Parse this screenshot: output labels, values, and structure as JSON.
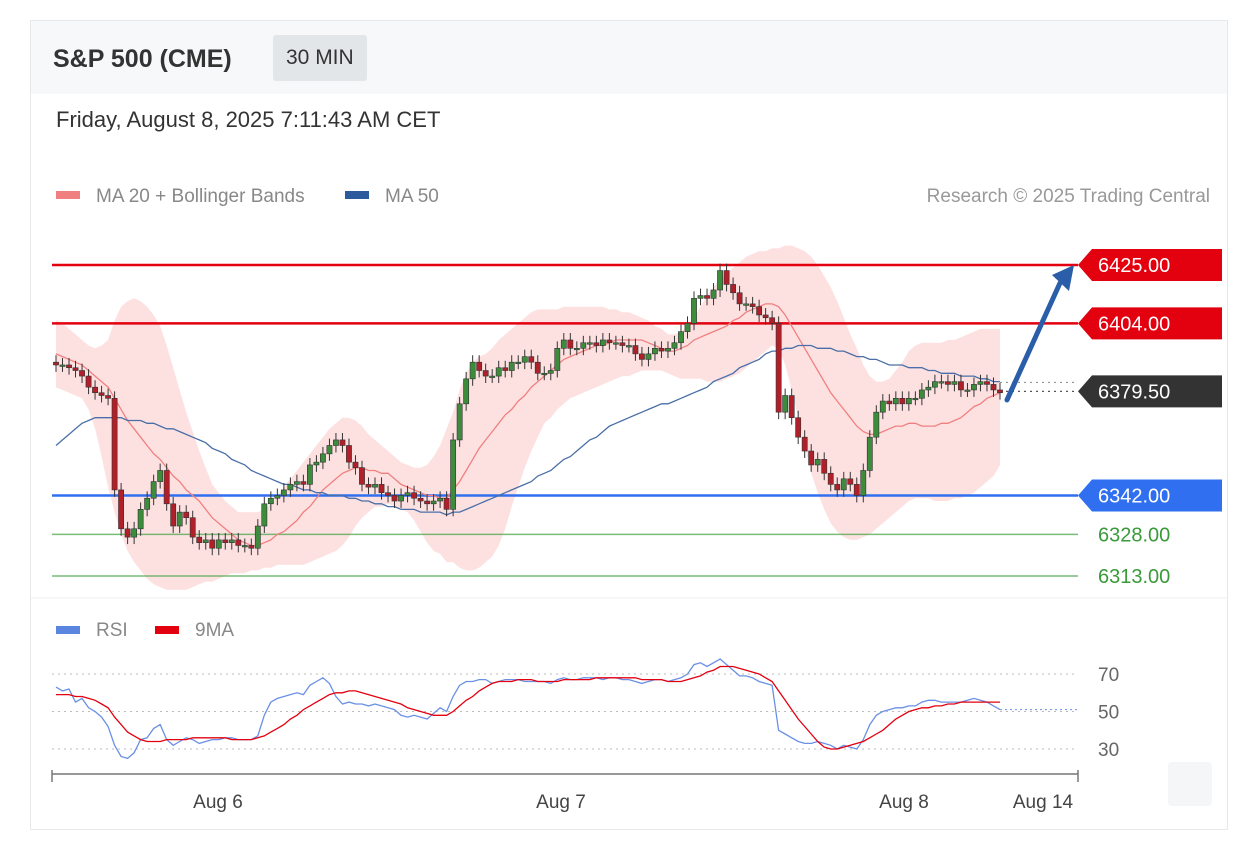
{
  "header": {
    "title": "S&P 500 (CME)",
    "interval": "30 MIN"
  },
  "timestamp": "Friday, August 8, 2025 7:11:43 AM CET",
  "copyright": "Research © 2025 Trading Central",
  "chart_data": [
    {
      "type": "candlestick",
      "title": "",
      "legend": [
        {
          "name": "MA 20 + Bollinger Bands",
          "color": "#f08080"
        },
        {
          "name": "MA 50",
          "color": "#2c5a9c"
        }
      ],
      "legend_position": "top-left",
      "x_labels": [
        "Aug 6",
        "Aug 7",
        "Aug 8",
        "Aug 14"
      ],
      "ylim": [
        6307,
        6435
      ],
      "levels": [
        {
          "value": 6425.0,
          "label": "6425.00",
          "color": "#e3000f",
          "style": "badge"
        },
        {
          "value": 6404.0,
          "label": "6404.00",
          "color": "#e3000f",
          "style": "badge"
        },
        {
          "value": 6379.5,
          "label": "6379.50",
          "color": "#333333",
          "style": "badge-dotted"
        },
        {
          "value": 6342.0,
          "label": "6342.00",
          "color": "#2f6ff0",
          "style": "badge"
        },
        {
          "value": 6328.0,
          "label": "6328.00",
          "color": "#4ca64c",
          "style": "text"
        },
        {
          "value": 6313.0,
          "label": "6313.00",
          "color": "#4ca64c",
          "style": "text"
        }
      ],
      "annotation": {
        "type": "arrow",
        "direction": "up",
        "from": 6380,
        "to": 6425,
        "color": "#2a5ea8"
      },
      "close": [
        6389,
        6389,
        6388,
        6387,
        6385,
        6381,
        6379,
        6378,
        6377,
        6344,
        6330,
        6327,
        6330,
        6337,
        6341,
        6347,
        6351,
        6339,
        6331,
        6336,
        6334,
        6327,
        6325,
        6326,
        6323,
        6326,
        6325,
        6326,
        6324,
        6324,
        6323,
        6331,
        6339,
        6341,
        6342,
        6344,
        6346,
        6347,
        6346,
        6353,
        6354,
        6357,
        6360,
        6362,
        6360,
        6354,
        6352,
        6346,
        6345,
        6346,
        6343,
        6342,
        6340,
        6342,
        6343,
        6341,
        6340,
        6339,
        6340,
        6341,
        6337,
        6362,
        6375,
        6384,
        6390,
        6387,
        6385,
        6385,
        6388,
        6387,
        6390,
        6390,
        6392,
        6390,
        6386,
        6386,
        6387,
        6395,
        6398,
        6395,
        6395,
        6397,
        6397,
        6396,
        6398,
        6397,
        6397,
        6396,
        6396,
        6393,
        6391,
        6393,
        6395,
        6394,
        6395,
        6397,
        6401,
        6404,
        6413,
        6414,
        6413,
        6416,
        6423,
        6418,
        6415,
        6411,
        6411,
        6410,
        6407,
        6406,
        6404,
        6372,
        6378,
        6370,
        6363,
        6358,
        6353,
        6355,
        6350,
        6346,
        6344,
        6348,
        6346,
        6342,
        6351,
        6363,
        6372,
        6376,
        6375,
        6377,
        6375,
        6377,
        6377,
        6380,
        6381,
        6383,
        6383,
        6382,
        6383,
        6380,
        6380,
        6382,
        6383,
        6382,
        6380,
        6379
      ],
      "ma20": [
        6393,
        6392,
        6391,
        6390,
        6389,
        6387,
        6385,
        6383,
        6381,
        6377,
        6373,
        6369,
        6366,
        6363,
        6360,
        6357,
        6355,
        6352,
        6349,
        6347,
        6344,
        6342,
        6340,
        6337,
        6334,
        6332,
        6330,
        6328,
        6326,
        6325,
        6324,
        6324,
        6325,
        6326,
        6328,
        6329,
        6331,
        6333,
        6336,
        6338,
        6341,
        6344,
        6346,
        6348,
        6350,
        6351,
        6352,
        6352,
        6351,
        6351,
        6350,
        6350,
        6348,
        6346,
        6345,
        6344,
        6343,
        6342,
        6342,
        6341,
        6341,
        6344,
        6347,
        6351,
        6355,
        6359,
        6362,
        6365,
        6368,
        6371,
        6373,
        6376,
        6378,
        6381,
        6383,
        6385,
        6387,
        6389,
        6391,
        6392,
        6393,
        6394,
        6395,
        6396,
        6396,
        6397,
        6398,
        6398,
        6398,
        6398,
        6398,
        6397,
        6396,
        6395,
        6394,
        6394,
        6395,
        6396,
        6398,
        6399,
        6400,
        6401,
        6402,
        6403,
        6405,
        6406,
        6408,
        6409,
        6410,
        6411,
        6411,
        6410,
        6407,
        6403,
        6399,
        6395,
        6391,
        6387,
        6383,
        6379,
        6376,
        6373,
        6370,
        6367,
        6365,
        6364,
        6364,
        6365,
        6366,
        6367,
        6367,
        6368,
        6368,
        6367,
        6367,
        6367,
        6368,
        6368,
        6369,
        6370,
        6372,
        6374,
        6375,
        6377,
        6378,
        6379
      ],
      "bb_upper": [
        6405,
        6404,
        6402,
        6400,
        6398,
        6396,
        6395,
        6396,
        6398,
        6405,
        6410,
        6412,
        6413,
        6412,
        6410,
        6407,
        6403,
        6396,
        6388,
        6380,
        6372,
        6365,
        6358,
        6352,
        6346,
        6343,
        6340,
        6338,
        6336,
        6336,
        6336,
        6336,
        6337,
        6339,
        6342,
        6345,
        6348,
        6351,
        6354,
        6357,
        6360,
        6363,
        6366,
        6368,
        6370,
        6370,
        6369,
        6367,
        6364,
        6362,
        6360,
        6358,
        6356,
        6354,
        6353,
        6352,
        6352,
        6353,
        6356,
        6360,
        6366,
        6372,
        6380,
        6386,
        6390,
        6392,
        6393,
        6395,
        6398,
        6400,
        6402,
        6404,
        6406,
        6408,
        6409,
        6409,
        6409,
        6409,
        6410,
        6410,
        6410,
        6410,
        6410,
        6410,
        6410,
        6409,
        6409,
        6408,
        6408,
        6407,
        6406,
        6405,
        6403,
        6402,
        6400,
        6400,
        6401,
        6403,
        6406,
        6410,
        6414,
        6417,
        6420,
        6422,
        6424,
        6426,
        6428,
        6429,
        6430,
        6430,
        6431,
        6431,
        6432,
        6432,
        6431,
        6430,
        6428,
        6425,
        6421,
        6417,
        6412,
        6406,
        6400,
        6395,
        6389,
        6385,
        6383,
        6383,
        6384,
        6387,
        6390,
        6394,
        6396,
        6397,
        6397,
        6397,
        6397,
        6398,
        6398,
        6399,
        6400,
        6401,
        6402,
        6402,
        6402,
        6402
      ],
      "bb_lower": [
        6381,
        6380,
        6379,
        6378,
        6377,
        6373,
        6366,
        6356,
        6345,
        6336,
        6328,
        6322,
        6318,
        6315,
        6312,
        6310,
        6309,
        6308,
        6308,
        6308,
        6308,
        6309,
        6310,
        6311,
        6311,
        6312,
        6313,
        6314,
        6314,
        6314,
        6315,
        6315,
        6316,
        6316,
        6317,
        6317,
        6317,
        6317,
        6317,
        6318,
        6319,
        6320,
        6321,
        6322,
        6324,
        6327,
        6331,
        6334,
        6336,
        6338,
        6338,
        6339,
        6338,
        6337,
        6336,
        6333,
        6329,
        6325,
        6322,
        6321,
        6318,
        6318,
        6316,
        6315,
        6315,
        6316,
        6318,
        6320,
        6324,
        6330,
        6338,
        6345,
        6352,
        6358,
        6363,
        6368,
        6370,
        6373,
        6375,
        6377,
        6378,
        6379,
        6380,
        6381,
        6382,
        6383,
        6384,
        6385,
        6385,
        6386,
        6387,
        6387,
        6387,
        6387,
        6386,
        6385,
        6384,
        6384,
        6384,
        6384,
        6383,
        6383,
        6383,
        6384,
        6385,
        6386,
        6388,
        6390,
        6392,
        6394,
        6396,
        6395,
        6389,
        6380,
        6370,
        6360,
        6350,
        6343,
        6337,
        6332,
        6329,
        6327,
        6326,
        6326,
        6327,
        6328,
        6330,
        6332,
        6334,
        6336,
        6338,
        6340,
        6341,
        6341,
        6341,
        6340,
        6340,
        6340,
        6341,
        6341,
        6342,
        6343,
        6345,
        6347,
        6349,
        6353
      ],
      "ma50": [
        6360,
        6362,
        6364,
        6366,
        6368,
        6369,
        6370,
        6370,
        6370,
        6370,
        6370,
        6369,
        6369,
        6369,
        6368,
        6368,
        6367,
        6366,
        6366,
        6365,
        6364,
        6363,
        6362,
        6361,
        6359,
        6358,
        6357,
        6355,
        6354,
        6353,
        6351,
        6350,
        6349,
        6348,
        6347,
        6346,
        6346,
        6345,
        6344,
        6344,
        6343,
        6343,
        6342,
        6342,
        6342,
        6341,
        6341,
        6340,
        6340,
        6339,
        6339,
        6338,
        6338,
        6337,
        6337,
        6337,
        6336,
        6336,
        6336,
        6336,
        6335,
        6336,
        6336,
        6337,
        6338,
        6339,
        6340,
        6341,
        6342,
        6343,
        6344,
        6345,
        6346,
        6347,
        6349,
        6350,
        6351,
        6353,
        6355,
        6356,
        6358,
        6360,
        6362,
        6363,
        6365,
        6367,
        6368,
        6369,
        6370,
        6371,
        6372,
        6373,
        6374,
        6375,
        6375,
        6376,
        6377,
        6378,
        6379,
        6380,
        6381,
        6383,
        6384,
        6385,
        6386,
        6388,
        6389,
        6390,
        6391,
        6393,
        6394,
        6394,
        6395,
        6395,
        6396,
        6396,
        6396,
        6395,
        6395,
        6395,
        6394,
        6394,
        6393,
        6392,
        6392,
        6391,
        6391,
        6390,
        6389,
        6389,
        6389,
        6388,
        6388,
        6388,
        6387,
        6387,
        6386,
        6386,
        6386,
        6385,
        6385,
        6385,
        6384,
        6384,
        6383,
        6383
      ]
    },
    {
      "type": "line",
      "title": "",
      "legend": [
        {
          "name": "RSI",
          "color": "#5a86e0"
        },
        {
          "name": "9MA",
          "color": "#e3000f"
        }
      ],
      "legend_position": "top-left",
      "levels": [
        70,
        50,
        30
      ],
      "ylim": [
        20,
        80
      ],
      "series": [
        {
          "name": "RSI",
          "values": [
            63,
            61,
            62,
            55,
            57,
            52,
            50,
            47,
            42,
            32,
            26,
            25,
            28,
            35,
            36,
            41,
            43,
            35,
            32,
            34,
            36,
            35,
            33,
            34,
            35,
            35,
            36,
            36,
            35,
            35,
            35,
            37,
            48,
            55,
            57,
            58,
            59,
            60,
            59,
            64,
            66,
            68,
            65,
            58,
            54,
            55,
            54,
            54,
            53,
            54,
            53,
            52,
            51,
            48,
            47,
            48,
            47,
            46,
            49,
            52,
            50,
            58,
            64,
            66,
            66,
            67,
            67,
            65,
            66,
            67,
            67,
            67,
            66,
            66,
            66,
            66,
            65,
            67,
            68,
            67,
            67,
            68,
            68,
            68,
            67,
            68,
            68,
            67,
            67,
            66,
            65,
            66,
            67,
            67,
            66,
            67,
            68,
            70,
            75,
            76,
            74,
            76,
            78,
            75,
            72,
            69,
            69,
            68,
            66,
            65,
            64,
            40,
            38,
            36,
            34,
            33,
            33,
            34,
            33,
            32,
            30,
            32,
            31,
            30,
            35,
            43,
            48,
            50,
            51,
            52,
            52,
            53,
            53,
            55,
            56,
            56,
            55,
            55,
            55,
            55,
            56,
            57,
            56,
            55,
            53,
            51
          ]
        },
        {
          "name": "9MA",
          "values": [
            59,
            59,
            59,
            58,
            58,
            57,
            56,
            54,
            52,
            47,
            43,
            39,
            37,
            35,
            34,
            34,
            34,
            35,
            35,
            35,
            35,
            36,
            36,
            36,
            36,
            36,
            36,
            35,
            35,
            35,
            35,
            36,
            37,
            39,
            41,
            43,
            46,
            48,
            51,
            53,
            55,
            57,
            59,
            60,
            60,
            61,
            61,
            60,
            59,
            58,
            57,
            56,
            55,
            54,
            52,
            51,
            50,
            49,
            48,
            48,
            48,
            50,
            53,
            56,
            58,
            61,
            63,
            65,
            66,
            66,
            66,
            67,
            67,
            67,
            66,
            66,
            66,
            66,
            67,
            67,
            67,
            67,
            67,
            68,
            68,
            68,
            68,
            68,
            68,
            68,
            67,
            67,
            67,
            67,
            66,
            66,
            66,
            67,
            68,
            69,
            71,
            72,
            74,
            74,
            74,
            73,
            72,
            71,
            70,
            68,
            66,
            61,
            56,
            51,
            46,
            42,
            38,
            34,
            31,
            30,
            30,
            31,
            32,
            33,
            34,
            36,
            38,
            40,
            43,
            46,
            48,
            50,
            51,
            52,
            52,
            53,
            53,
            54,
            54,
            55,
            55,
            55,
            55,
            55,
            55,
            55
          ]
        }
      ]
    }
  ]
}
